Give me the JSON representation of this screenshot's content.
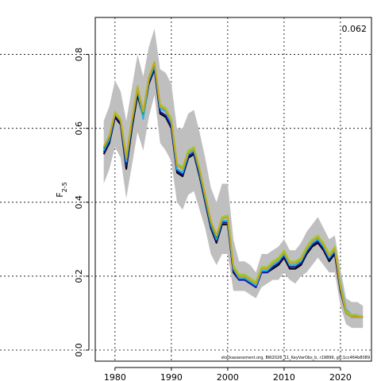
{
  "chart_data": {
    "type": "line",
    "title": "",
    "xlabel": "",
    "ylabel": "F",
    "ylabel_subscript": "2-5",
    "corner_value": "0.062",
    "footer_text": "stockassessment.org, BW2026_11_KeyVarObs_b, r19899, git:1cc464b8089",
    "xlim": [
      1976.5,
      2025.5
    ],
    "ylim": [
      -0.03,
      0.9
    ],
    "xticks": [
      1980,
      1990,
      2000,
      2010,
      2020
    ],
    "yticks": [
      0.0,
      0.2,
      0.4,
      0.6,
      0.8
    ],
    "ytick_labels": [
      "0.0",
      "0.2",
      "0.4",
      "0.6",
      "0.8"
    ],
    "grid": true,
    "x": [
      1978,
      1979,
      1980,
      1981,
      1982,
      1983,
      1984,
      1985,
      1986,
      1987,
      1988,
      1989,
      1990,
      1991,
      1992,
      1993,
      1994,
      1995,
      1996,
      1997,
      1998,
      1999,
      2000,
      2001,
      2002,
      2003,
      2004,
      2005,
      2006,
      2007,
      2008,
      2009,
      2010,
      2011,
      2012,
      2013,
      2014,
      2015,
      2016,
      2017,
      2018,
      2019,
      2020,
      2021,
      2022,
      2023,
      2024
    ],
    "band": {
      "upper": [
        0.62,
        0.66,
        0.73,
        0.7,
        0.62,
        0.71,
        0.8,
        0.74,
        0.82,
        0.87,
        0.76,
        0.75,
        0.72,
        0.6,
        0.6,
        0.64,
        0.65,
        0.59,
        0.52,
        0.44,
        0.4,
        0.45,
        0.45,
        0.3,
        0.24,
        0.24,
        0.23,
        0.21,
        0.26,
        0.26,
        0.27,
        0.28,
        0.3,
        0.27,
        0.27,
        0.29,
        0.32,
        0.34,
        0.36,
        0.33,
        0.3,
        0.31,
        0.22,
        0.14,
        0.13,
        0.13,
        0.12
      ],
      "lower": [
        0.45,
        0.49,
        0.55,
        0.52,
        0.41,
        0.5,
        0.59,
        0.54,
        0.63,
        0.69,
        0.56,
        0.54,
        0.51,
        0.4,
        0.38,
        0.42,
        0.43,
        0.38,
        0.33,
        0.26,
        0.23,
        0.26,
        0.26,
        0.16,
        0.16,
        0.16,
        0.15,
        0.14,
        0.17,
        0.18,
        0.19,
        0.19,
        0.21,
        0.19,
        0.18,
        0.2,
        0.21,
        0.23,
        0.25,
        0.23,
        0.21,
        0.21,
        0.12,
        0.07,
        0.06,
        0.06,
        0.06
      ]
    },
    "series": [
      {
        "name": "",
        "color": "#000000",
        "values": [
          0.53,
          0.56,
          0.63,
          0.61,
          0.49,
          0.6,
          0.69,
          0.63,
          0.72,
          0.76,
          0.64,
          0.63,
          0.6,
          0.48,
          0.47,
          0.52,
          0.53,
          0.47,
          0.4,
          0.33,
          0.29,
          0.34,
          0.34,
          0.21,
          0.19,
          0.19,
          0.18,
          0.17,
          0.21,
          0.21,
          0.22,
          0.23,
          0.25,
          0.22,
          0.22,
          0.23,
          0.26,
          0.28,
          0.29,
          0.27,
          0.24,
          0.26,
          0.16,
          0.1,
          0.09,
          0.09,
          0.09
        ]
      },
      {
        "name": "",
        "color": "#1a1aa8",
        "values": [
          0.535,
          0.565,
          0.635,
          0.615,
          0.5,
          0.61,
          0.7,
          0.635,
          0.725,
          0.765,
          0.645,
          0.635,
          0.605,
          0.485,
          0.475,
          0.525,
          0.535,
          0.475,
          0.405,
          0.335,
          0.295,
          0.345,
          0.345,
          0.215,
          0.19,
          0.19,
          0.18,
          0.17,
          0.21,
          0.21,
          0.225,
          0.235,
          0.255,
          0.225,
          0.225,
          0.235,
          0.265,
          0.285,
          0.295,
          0.275,
          0.245,
          0.265,
          0.165,
          0.1,
          0.09,
          0.09,
          0.09
        ]
      },
      {
        "name": "",
        "color": "#23b5e8",
        "values": [
          0.54,
          0.57,
          0.64,
          0.62,
          0.51,
          0.615,
          0.705,
          0.625,
          0.73,
          0.77,
          0.655,
          0.645,
          0.615,
          0.49,
          0.48,
          0.53,
          0.54,
          0.48,
          0.41,
          0.34,
          0.3,
          0.35,
          0.35,
          0.22,
          0.195,
          0.195,
          0.185,
          0.175,
          0.215,
          0.215,
          0.23,
          0.24,
          0.26,
          0.23,
          0.23,
          0.24,
          0.27,
          0.29,
          0.3,
          0.28,
          0.25,
          0.27,
          0.18,
          0.11,
          0.095,
          0.095,
          0.09
        ]
      },
      {
        "name": "",
        "color": "#2e8b57",
        "values": [
          0.545,
          0.575,
          0.64,
          0.62,
          0.52,
          0.62,
          0.71,
          0.64,
          0.735,
          0.775,
          0.66,
          0.65,
          0.62,
          0.5,
          0.49,
          0.535,
          0.545,
          0.485,
          0.415,
          0.345,
          0.305,
          0.355,
          0.36,
          0.225,
          0.2,
          0.2,
          0.19,
          0.18,
          0.22,
          0.22,
          0.235,
          0.245,
          0.265,
          0.235,
          0.235,
          0.245,
          0.275,
          0.295,
          0.305,
          0.285,
          0.255,
          0.275,
          0.17,
          0.105,
          0.095,
          0.095,
          0.09
        ]
      },
      {
        "name": "",
        "color": "#9acd32",
        "values": [
          0.55,
          0.58,
          0.645,
          0.625,
          0.525,
          0.625,
          0.715,
          0.645,
          0.74,
          0.78,
          0.665,
          0.655,
          0.625,
          0.505,
          0.495,
          0.54,
          0.55,
          0.49,
          0.42,
          0.35,
          0.31,
          0.36,
          0.365,
          0.23,
          0.205,
          0.205,
          0.195,
          0.185,
          0.225,
          0.225,
          0.24,
          0.25,
          0.27,
          0.24,
          0.24,
          0.25,
          0.28,
          0.3,
          0.31,
          0.29,
          0.26,
          0.28,
          0.175,
          0.105,
          0.095,
          0.095,
          0.09
        ]
      },
      {
        "name": "",
        "color": "#c8a81e",
        "values": [
          0.55,
          0.58,
          0.64,
          0.62,
          0.52,
          0.62,
          0.71,
          0.645,
          0.735,
          0.78,
          0.66,
          0.65,
          0.62,
          0.5,
          0.49,
          0.535,
          0.545,
          0.49,
          0.42,
          0.35,
          0.31,
          0.355,
          0.36,
          0.225,
          0.2,
          0.2,
          0.19,
          0.18,
          0.22,
          0.22,
          0.235,
          0.245,
          0.265,
          0.235,
          0.235,
          0.245,
          0.275,
          0.295,
          0.305,
          0.285,
          0.255,
          0.275,
          0.17,
          0.1,
          0.09,
          0.09,
          0.09
        ]
      }
    ]
  }
}
